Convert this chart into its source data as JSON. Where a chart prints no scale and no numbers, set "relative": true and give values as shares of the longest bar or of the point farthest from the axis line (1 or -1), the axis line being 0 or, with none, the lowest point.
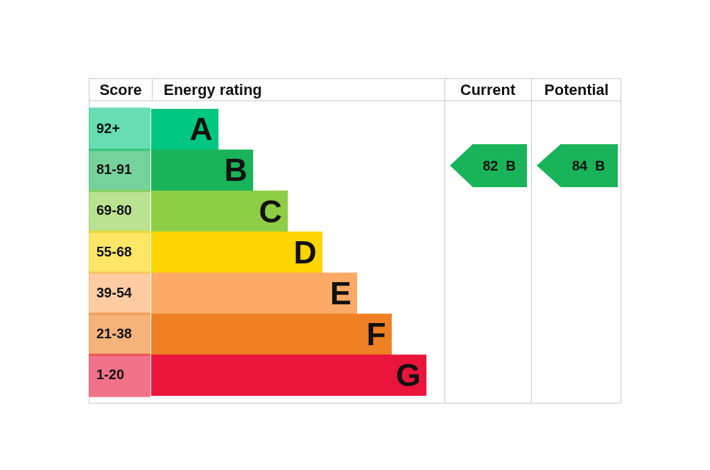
{
  "chart_data": {
    "type": "bar",
    "orientation": "horizontal",
    "relative": true,
    "ylabel": "Score",
    "xlabel": "Energy rating",
    "categories": [
      "92+",
      "81-91",
      "69-80",
      "55-68",
      "39-54",
      "21-38",
      "1-20"
    ],
    "values": [
      0.244,
      0.37,
      0.496,
      0.622,
      0.748,
      0.874,
      1
    ],
    "colors": [
      "#00c781",
      "#19b459",
      "#8dce46",
      "#ffd500",
      "#fcaa65",
      "#ef8023",
      "#e9153b"
    ],
    "annotations": [
      "Current",
      "Potential",
      "82  B",
      "84  B",
      "A",
      "B",
      "C",
      "D",
      "E",
      "F",
      "G"
    ]
  }
}
